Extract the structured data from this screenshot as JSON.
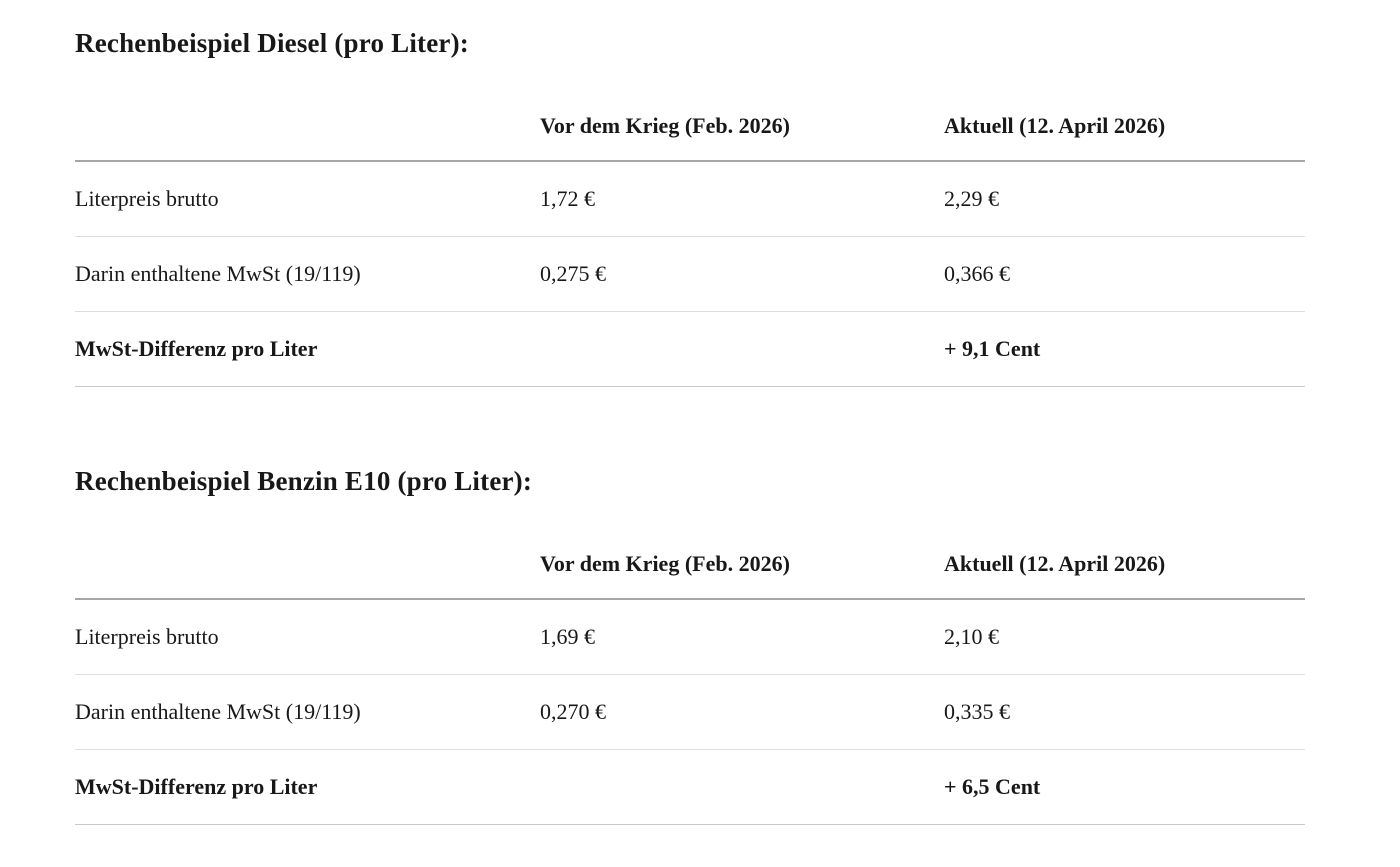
{
  "colors": {
    "background": "#ffffff",
    "text": "#18181a",
    "header_border": "#a6a6a6",
    "row_border": "#dddddd",
    "table_bottom_border": "#c9c9c9"
  },
  "tables": [
    {
      "title": "Rechenbeispiel Diesel (pro Liter):",
      "columns": {
        "label": "",
        "before": "Vor dem Krieg (Feb. 2026)",
        "current": "Aktuell (12. April 2026)"
      },
      "rows": [
        {
          "label": "Literpreis brutto",
          "before": "1,72 €",
          "current": "2,29 €"
        },
        {
          "label": "Darin enthaltene MwSt (19/119)",
          "before": "0,275 €",
          "current": "0,366 €"
        },
        {
          "label": "MwSt-Differenz pro Liter",
          "before": "",
          "current": "+ 9,1 Cent"
        }
      ]
    },
    {
      "title": "Rechenbeispiel Benzin E10 (pro Liter):",
      "columns": {
        "label": "",
        "before": "Vor dem Krieg (Feb. 2026)",
        "current": "Aktuell (12. April 2026)"
      },
      "rows": [
        {
          "label": "Literpreis brutto",
          "before": "1,69 €",
          "current": "2,10 €"
        },
        {
          "label": "Darin enthaltene MwSt (19/119)",
          "before": "0,270 €",
          "current": "0,335 €"
        },
        {
          "label": "MwSt-Differenz pro Liter",
          "before": "",
          "current": "+ 6,5 Cent"
        }
      ]
    }
  ]
}
